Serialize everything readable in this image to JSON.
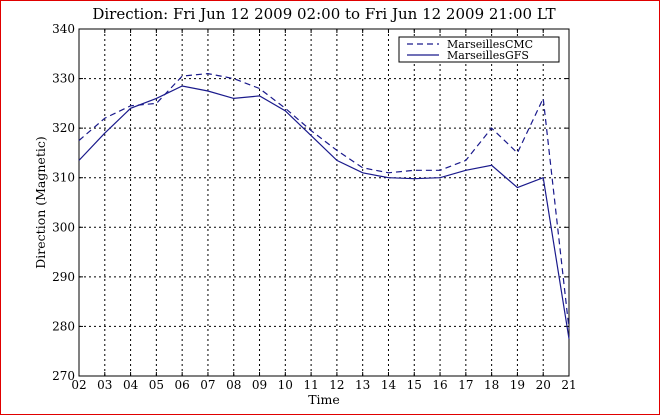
{
  "chart_data": {
    "type": "line",
    "title": "Direction: Fri Jun 12 2009 02:00 to Fri Jun 12 2009 21:00 LT",
    "xlabel": "Time",
    "ylabel": "Direction (Magnetic)",
    "x": [
      "02",
      "03",
      "04",
      "05",
      "06",
      "07",
      "08",
      "09",
      "10",
      "11",
      "12",
      "13",
      "14",
      "15",
      "16",
      "17",
      "18",
      "19",
      "20",
      "21"
    ],
    "ylim": [
      270,
      340
    ],
    "yticks": [
      270,
      280,
      290,
      300,
      310,
      320,
      330,
      340
    ],
    "grid": true,
    "legend_position": "top-right",
    "series": [
      {
        "name": "MarseillesCMC",
        "style": "dashed",
        "color": "#1a1a8c",
        "values": [
          317.5,
          322,
          324.5,
          325,
          330.5,
          331,
          330,
          328,
          324,
          319.5,
          315.5,
          312,
          311,
          311.5,
          311.5,
          313.5,
          320,
          315,
          326,
          279.5
        ]
      },
      {
        "name": "MarseillesGFS",
        "style": "solid",
        "color": "#1a1a8c",
        "values": [
          313.5,
          319,
          324,
          326,
          328.5,
          327.5,
          326,
          326.5,
          323.5,
          318.5,
          313.5,
          311,
          310,
          309.8,
          310,
          311.5,
          312.5,
          308,
          310,
          277.5
        ]
      }
    ]
  }
}
